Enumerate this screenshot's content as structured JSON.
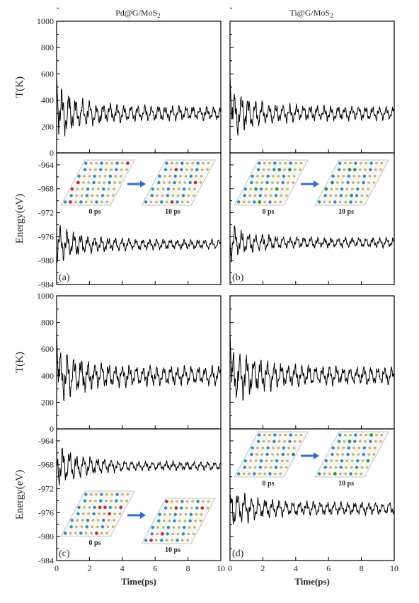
{
  "figure": {
    "columns": [
      {
        "title_main": "Pd@G/MoS",
        "title_sub": "2"
      },
      {
        "title_main": "Ti@G/MoS",
        "title_sub": "2"
      }
    ],
    "x_title": "Time(ps)",
    "x_ticks": [
      "0",
      "2",
      "4",
      "6",
      "8",
      "10"
    ],
    "temp_title": "T(K)",
    "energy_title": "Energy(eV)",
    "temp_ticks": [
      "0",
      "200",
      "400",
      "600",
      "800",
      "1000"
    ],
    "energy_ticks": [
      "-984",
      "-980",
      "-976",
      "-972",
      "-968",
      "-964"
    ],
    "snapshot_labels": [
      "0 ps",
      "10 ps"
    ],
    "panel_tags": [
      "(a)",
      "(b)",
      "(c)",
      "(d)"
    ],
    "colors": {
      "line": "#000000",
      "arrow": "#2e6fd1",
      "pd_atom": "#d42020",
      "ti_atom": "#1f9a3a",
      "mo_atom": "#1f8fc8",
      "s_atom": "#e6b820",
      "c_bond": "#b8b8b8"
    }
  },
  "chart_data": [
    {
      "type": "line",
      "panel": "(a)",
      "title": "Pd@G/MoS2",
      "xlabel": "Time(ps)",
      "temperature": {
        "ylabel": "T(K)",
        "ylim": [
          0,
          1000
        ],
        "xlim": [
          0,
          10
        ],
        "mean": 300,
        "initial_peak": 580,
        "initial_amplitude": 180,
        "final_amplitude": 45
      },
      "energy": {
        "ylabel": "Energy(eV)",
        "ylim": [
          -984,
          -962
        ],
        "xlim": [
          0,
          10
        ],
        "mean": -977.3,
        "initial_amplitude": 2.8,
        "final_amplitude": 0.7
      },
      "snapshots": [
        "0 ps",
        "10 ps"
      ]
    },
    {
      "type": "line",
      "panel": "(b)",
      "title": "Ti@G/MoS2",
      "xlabel": "Time(ps)",
      "temperature": {
        "ylabel": "T(K)",
        "ylim": [
          0,
          1000
        ],
        "xlim": [
          0,
          10
        ],
        "mean": 300,
        "initial_peak": 580,
        "initial_amplitude": 170,
        "final_amplitude": 45
      },
      "energy": {
        "ylabel": "Energy(eV)",
        "ylim": [
          -984,
          -962
        ],
        "xlim": [
          0,
          10
        ],
        "mean": -977.0,
        "initial_amplitude": 2.6,
        "final_amplitude": 0.7
      },
      "snapshots": [
        "0 ps",
        "10 ps"
      ]
    },
    {
      "type": "line",
      "panel": "(c)",
      "xlabel": "Time(ps)",
      "temperature": {
        "ylabel": "T(K)",
        "ylim": [
          0,
          1000
        ],
        "xlim": [
          0,
          10
        ],
        "mean": 400,
        "initial_peak": 720,
        "initial_amplitude": 190,
        "final_amplitude": 60
      },
      "energy": {
        "ylabel": "Energy(eV)",
        "ylim": [
          -984,
          -962
        ],
        "xlim": [
          0,
          10
        ],
        "mean": -968.2,
        "initial_amplitude": 3.2,
        "final_amplitude": 0.6
      },
      "snapshots": [
        "0 ps",
        "10 ps"
      ]
    },
    {
      "type": "line",
      "panel": "(d)",
      "xlabel": "Time(ps)",
      "temperature": {
        "ylabel": "T(K)",
        "ylim": [
          0,
          1000
        ],
        "xlim": [
          0,
          10
        ],
        "mean": 400,
        "initial_peak": 720,
        "initial_amplitude": 200,
        "final_amplitude": 60
      },
      "energy": {
        "ylabel": "Energy(eV)",
        "ylim": [
          -984,
          -962
        ],
        "xlim": [
          0,
          10
        ],
        "mean": -975.3,
        "initial_amplitude": 2.8,
        "final_amplitude": 0.9
      },
      "snapshots": [
        "0 ps",
        "10 ps"
      ]
    }
  ]
}
